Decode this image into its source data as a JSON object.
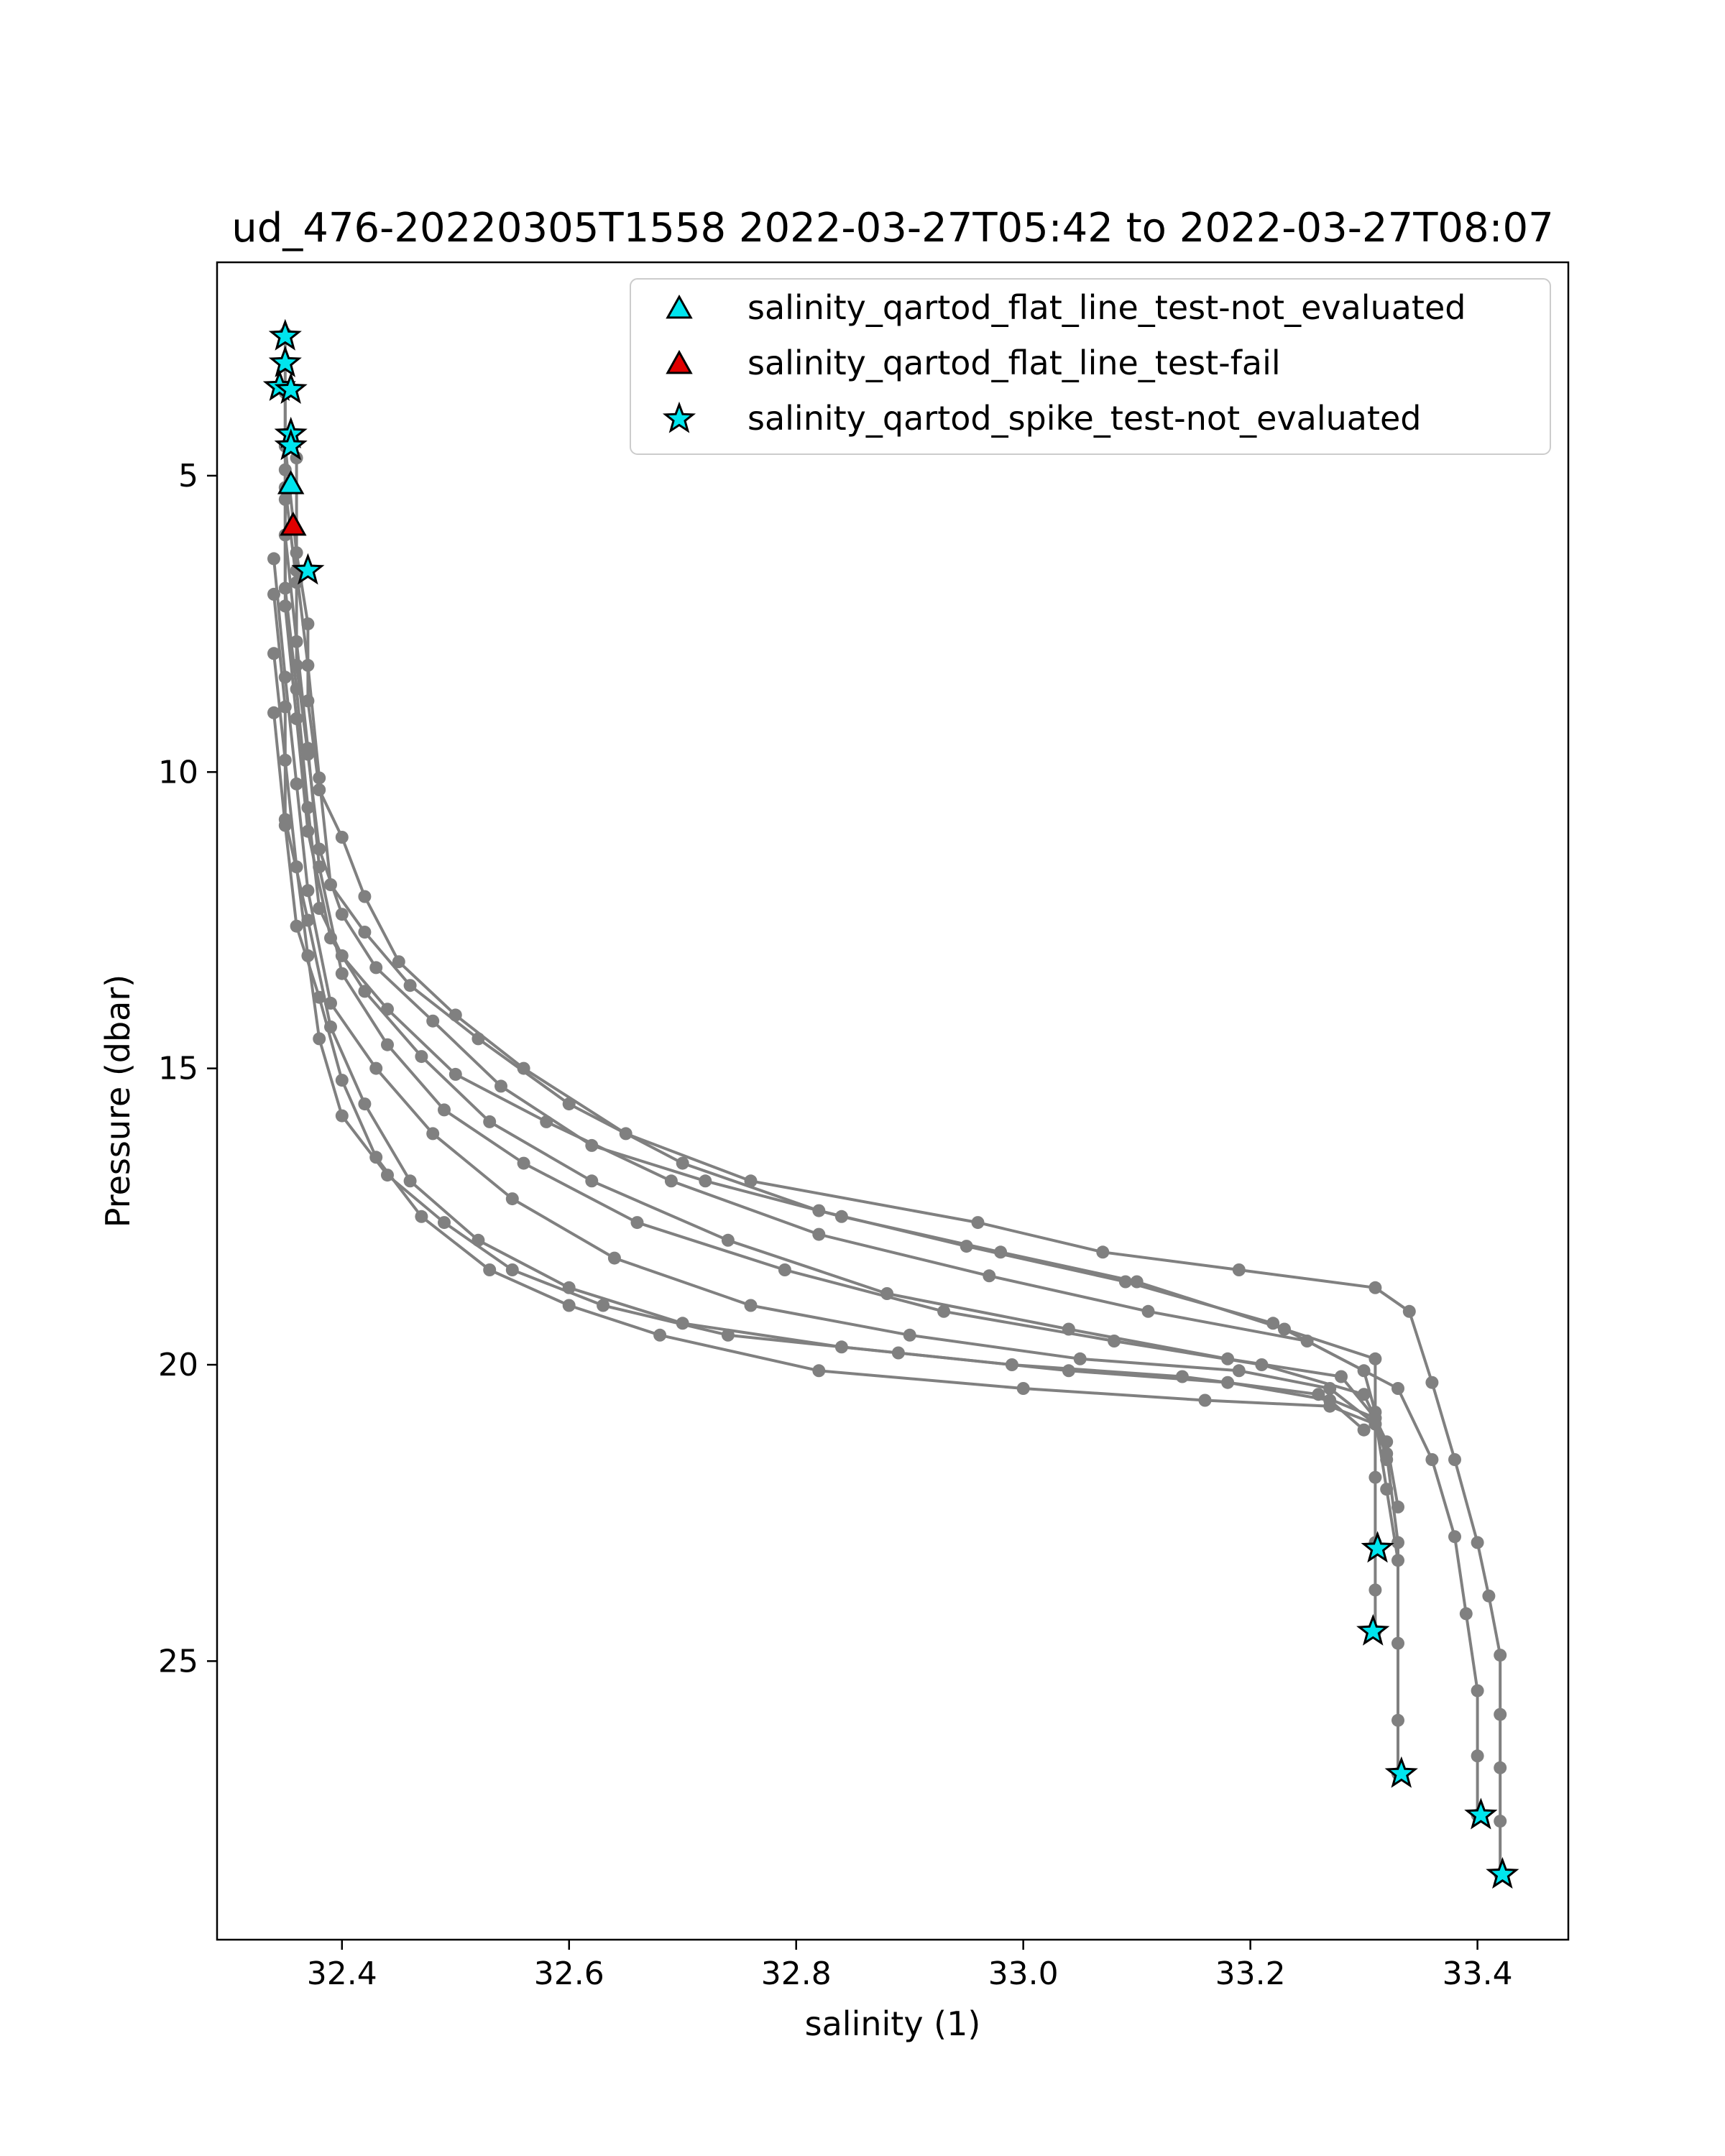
{
  "chart_data": {
    "type": "scatter",
    "title": "ud_476-20220305T1558 2022-03-27T05:42 to 2022-03-27T08:07",
    "xlabel": "salinity (1)",
    "ylabel": "Pressure (dbar)",
    "xlim": [
      32.29,
      33.48
    ],
    "ylim": [
      29.7,
      1.4
    ],
    "y_inverted": true,
    "xticks": [
      32.4,
      32.6,
      32.8,
      33.0,
      33.2,
      33.4
    ],
    "xtick_labels": [
      "32.4",
      "32.6",
      "32.8",
      "33.0",
      "33.2",
      "33.4"
    ],
    "yticks": [
      5,
      10,
      15,
      20,
      25
    ],
    "ytick_labels": [
      "5",
      "10",
      "15",
      "20",
      "25"
    ],
    "grid": false,
    "legend_position": "top-right",
    "profile_color": "#808080",
    "profiles": [
      {
        "x": [
          32.35,
          32.35,
          32.36,
          32.37,
          32.37,
          32.38,
          32.4,
          32.42,
          32.45,
          32.5,
          32.56,
          32.65,
          32.76,
          32.96,
          33.07,
          33.19,
          33.31,
          33.34,
          33.36,
          33.38,
          33.4,
          33.41,
          33.42,
          33.42,
          33.42,
          33.42,
          33.42
        ],
        "y": [
          2.6,
          4.5,
          6.3,
          7.5,
          8.8,
          10.3,
          11.1,
          12.1,
          13.2,
          14.1,
          15.0,
          16.1,
          16.9,
          17.6,
          18.1,
          18.4,
          18.7,
          19.1,
          20.3,
          21.6,
          23.0,
          23.9,
          24.9,
          25.9,
          26.8,
          27.7,
          28.6
        ]
      },
      {
        "x": [
          32.35,
          32.35,
          32.36,
          32.36,
          32.37,
          32.38,
          32.4,
          32.43,
          32.48,
          32.54,
          32.62,
          32.72,
          32.84,
          32.98,
          33.1,
          33.23,
          33.31,
          33.31,
          33.31,
          33.31,
          33.31,
          33.31
        ],
        "y": [
          3.6,
          5.2,
          6.8,
          8.2,
          9.7,
          11.3,
          12.4,
          13.3,
          14.2,
          15.3,
          16.3,
          16.9,
          17.5,
          18.1,
          18.6,
          19.4,
          19.9,
          20.8,
          21.9,
          23.0,
          23.8,
          24.5
        ]
      },
      {
        "x": [
          32.36,
          32.36,
          32.37,
          32.38,
          32.39,
          32.42,
          32.46,
          32.52,
          32.6,
          32.7,
          32.82,
          32.95,
          33.09,
          33.22,
          33.3,
          33.32,
          33.33,
          33.33,
          33.33,
          33.33
        ],
        "y": [
          4.7,
          6.6,
          8.2,
          10.1,
          11.9,
          12.7,
          13.6,
          14.5,
          15.6,
          16.6,
          17.4,
          18.0,
          18.6,
          19.3,
          20.1,
          21.5,
          23.0,
          24.7,
          26.0,
          26.9
        ]
      },
      {
        "x": [
          32.35,
          32.35,
          32.36,
          32.37,
          32.38,
          32.4,
          32.44,
          32.5,
          32.58,
          32.69,
          32.82,
          32.97,
          33.11,
          33.25,
          33.33,
          33.36,
          33.38,
          33.39,
          33.4,
          33.4,
          33.4
        ],
        "y": [
          4.9,
          6.9,
          8.6,
          10.6,
          12.3,
          13.1,
          14.0,
          15.1,
          15.9,
          16.9,
          17.8,
          18.5,
          19.1,
          19.6,
          20.4,
          21.6,
          22.9,
          24.2,
          25.5,
          26.6,
          27.6
        ]
      },
      {
        "x": [
          32.35,
          32.35,
          32.36,
          32.37,
          32.39,
          32.42,
          32.47,
          32.53,
          32.62,
          32.74,
          32.88,
          33.04,
          33.18,
          33.28,
          33.31,
          33.32,
          33.33
        ],
        "y": [
          5.4,
          7.2,
          9.1,
          11.0,
          12.8,
          13.7,
          14.8,
          15.9,
          16.9,
          17.9,
          18.8,
          19.4,
          19.9,
          20.2,
          20.9,
          22.1,
          23.3
        ]
      },
      {
        "x": [
          32.35,
          32.36,
          32.37,
          32.38,
          32.4,
          32.44,
          32.49,
          32.56,
          32.66,
          32.79,
          32.93,
          33.08,
          33.21,
          33.3,
          33.32,
          33.33
        ],
        "y": [
          6.0,
          7.8,
          9.6,
          11.6,
          13.4,
          14.6,
          15.7,
          16.6,
          17.6,
          18.4,
          19.1,
          19.6,
          20.0,
          20.5,
          21.3,
          22.4
        ]
      },
      {
        "x": [
          32.34,
          32.35,
          32.36,
          32.37,
          32.39,
          32.43,
          32.48,
          32.55,
          32.64,
          32.76,
          32.9,
          33.05,
          33.19,
          33.27,
          33.31
        ],
        "y": [
          6.4,
          8.4,
          10.2,
          12.0,
          13.9,
          15.0,
          16.1,
          17.2,
          18.2,
          19.0,
          19.5,
          19.9,
          20.1,
          20.4,
          21.0
        ]
      },
      {
        "x": [
          32.34,
          32.35,
          32.35,
          32.37,
          32.39,
          32.42,
          32.46,
          32.52,
          32.6,
          32.7,
          32.84,
          32.99,
          33.14,
          33.26,
          33.31,
          33.32
        ],
        "y": [
          7.0,
          8.9,
          10.8,
          12.5,
          14.3,
          15.6,
          16.9,
          17.9,
          18.7,
          19.3,
          19.7,
          20.0,
          20.2,
          20.5,
          20.9,
          21.6
        ]
      },
      {
        "x": [
          32.34,
          32.35,
          32.36,
          32.37,
          32.38,
          32.4,
          32.44,
          32.49,
          32.55,
          32.63,
          32.74,
          32.89,
          33.04,
          33.18,
          33.27,
          33.3
        ],
        "y": [
          8.0,
          9.8,
          11.6,
          13.1,
          14.5,
          15.8,
          16.8,
          17.6,
          18.4,
          19.0,
          19.5,
          19.8,
          20.1,
          20.3,
          20.6,
          21.1
        ]
      },
      {
        "x": [
          32.34,
          32.35,
          32.36,
          32.38,
          32.4,
          32.43,
          32.47,
          32.53,
          32.6,
          32.68,
          32.82,
          33.0,
          33.16,
          33.27,
          33.31
        ],
        "y": [
          9.0,
          10.9,
          12.6,
          13.8,
          15.2,
          16.5,
          17.5,
          18.4,
          19.0,
          19.5,
          20.1,
          20.4,
          20.6,
          20.7,
          21.0
        ]
      }
    ],
    "series": [
      {
        "name": "salinity_qartod_flat_line_test-not_evaluated",
        "marker": "triangle",
        "color": "#00e5ee",
        "x": [
          32.355
        ],
        "y": [
          5.15
        ]
      },
      {
        "name": "salinity_qartod_flat_line_test-fail",
        "marker": "triangle",
        "color": "#e00000",
        "x": [
          32.357
        ],
        "y": [
          5.85
        ]
      },
      {
        "name": "salinity_qartod_spike_test-not_evaluated",
        "marker": "star",
        "color": "#00e5ee",
        "x": [
          32.35,
          32.35,
          32.345,
          32.355,
          32.355,
          32.355,
          32.37,
          33.312,
          33.308,
          33.333,
          33.403,
          33.422
        ],
        "y": [
          2.65,
          3.1,
          3.5,
          3.55,
          4.3,
          4.5,
          6.6,
          23.1,
          24.5,
          26.9,
          27.6,
          28.6
        ]
      }
    ]
  }
}
